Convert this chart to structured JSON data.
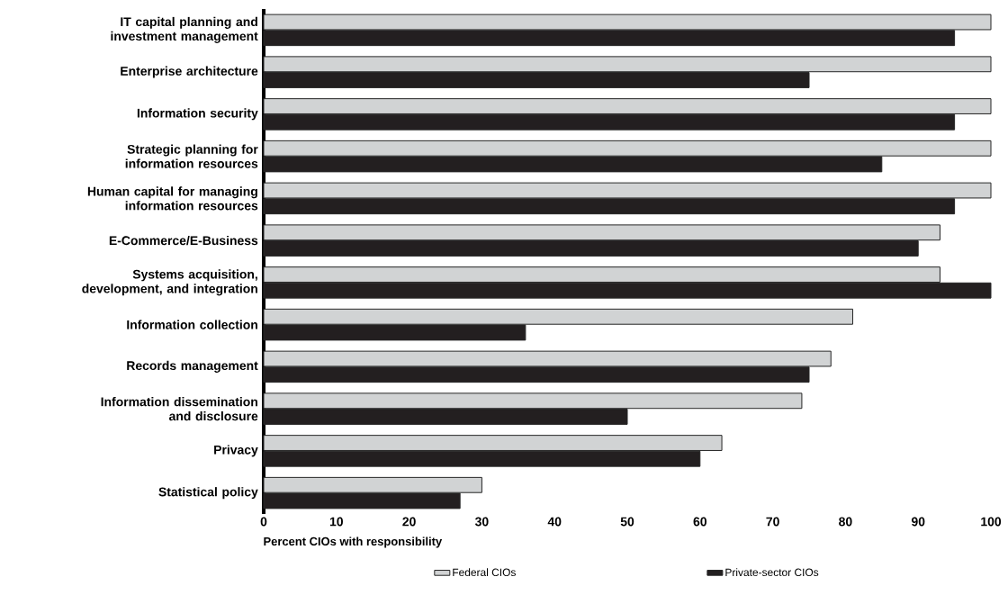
{
  "chart_data": {
    "type": "bar",
    "orientation": "horizontal",
    "categories": [
      "IT capital planning and investment management",
      "Enterprise architecture",
      "Information security",
      "Strategic planning for information resources",
      "Human capital for managing information resources",
      "E-Commerce/E-Business",
      "Systems acquisition, development, and integration",
      "Information collection",
      "Records management",
      "Information dissemination and disclosure",
      "Privacy",
      "Statistical policy"
    ],
    "series": [
      {
        "name": "Federal CIOs",
        "color": "#d1d3d4",
        "values": [
          100,
          100,
          100,
          100,
          100,
          93,
          93,
          81,
          78,
          74,
          63,
          30
        ]
      },
      {
        "name": "Private-sector CIOs",
        "color": "#231f20",
        "values": [
          95,
          75,
          95,
          85,
          95,
          90,
          100,
          36,
          75,
          50,
          60,
          27
        ]
      }
    ],
    "xlabel": "Percent CIOs with responsibility",
    "xlim": [
      0,
      100
    ],
    "xticks": [
      0,
      10,
      20,
      30,
      40,
      50,
      60,
      70,
      80,
      90,
      100
    ],
    "legend": "bottom"
  }
}
